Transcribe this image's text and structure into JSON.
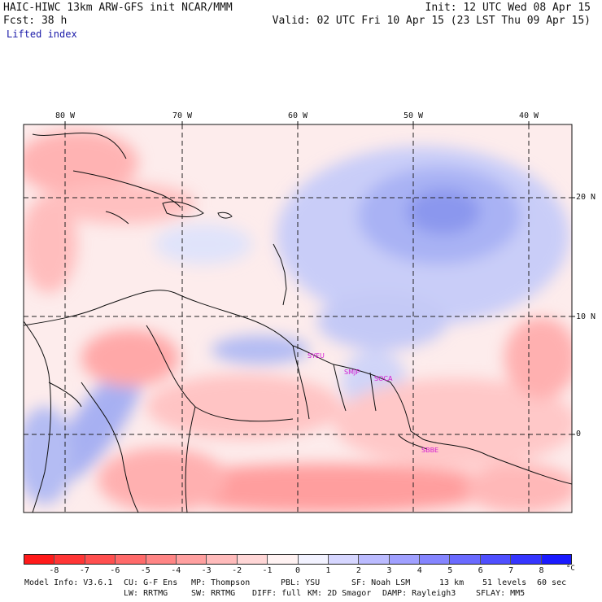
{
  "header": {
    "line1_left": "HAIC-HIWC 13km ARW-GFS init   NCAR/MMM",
    "line1_right": "Init: 12 UTC Wed 08 Apr 15",
    "line2_left": "Fcst:   38 h",
    "line2_right": "Valid: 02 UTC Fri 10 Apr 15 (23 LST Thu 09 Apr 15)",
    "field_name": "Lifted index"
  },
  "map": {
    "lon_labels": [
      "80 W",
      "70 W",
      "60 W",
      "50 W",
      "40 W"
    ],
    "lat_labels": [
      "20 N",
      "10 N",
      "0"
    ],
    "station_codes": [
      "SYEU",
      "SMJP",
      "SOCA",
      "SBBE"
    ]
  },
  "colorbar": {
    "tick_labels": [
      "-8",
      "-7",
      "-6",
      "-5",
      "-4",
      "-3",
      "-2",
      "-1",
      "0",
      "1",
      "2",
      "3",
      "4",
      "5",
      "6",
      "7",
      "8"
    ],
    "unit": "°C",
    "colors": [
      "#ff1a1a",
      "#ff3535",
      "#ff4f4f",
      "#ff6a6a",
      "#ff8585",
      "#ffa0a0",
      "#ffbbbb",
      "#ffd6d6",
      "#fff2f2",
      "#f2f2ff",
      "#d6d6ff",
      "#bbbbff",
      "#a0a0ff",
      "#8585ff",
      "#6a6aff",
      "#4f4fff",
      "#3535ff",
      "#1a1aff"
    ]
  },
  "footer": {
    "line1": [
      "Model Info: V3.6.1",
      "CU: G-F Ens",
      "MP: Thompson",
      "PBL: YSU",
      "SF: Noah LSM",
      "13 km",
      "51 levels",
      "60 sec"
    ],
    "line2": [
      "LW: RRTMG",
      "SW: RRTMG",
      "DIFF: full",
      "KM: 2D Smagor",
      "DAMP: Rayleigh3",
      "SFLAY: MM5"
    ]
  }
}
